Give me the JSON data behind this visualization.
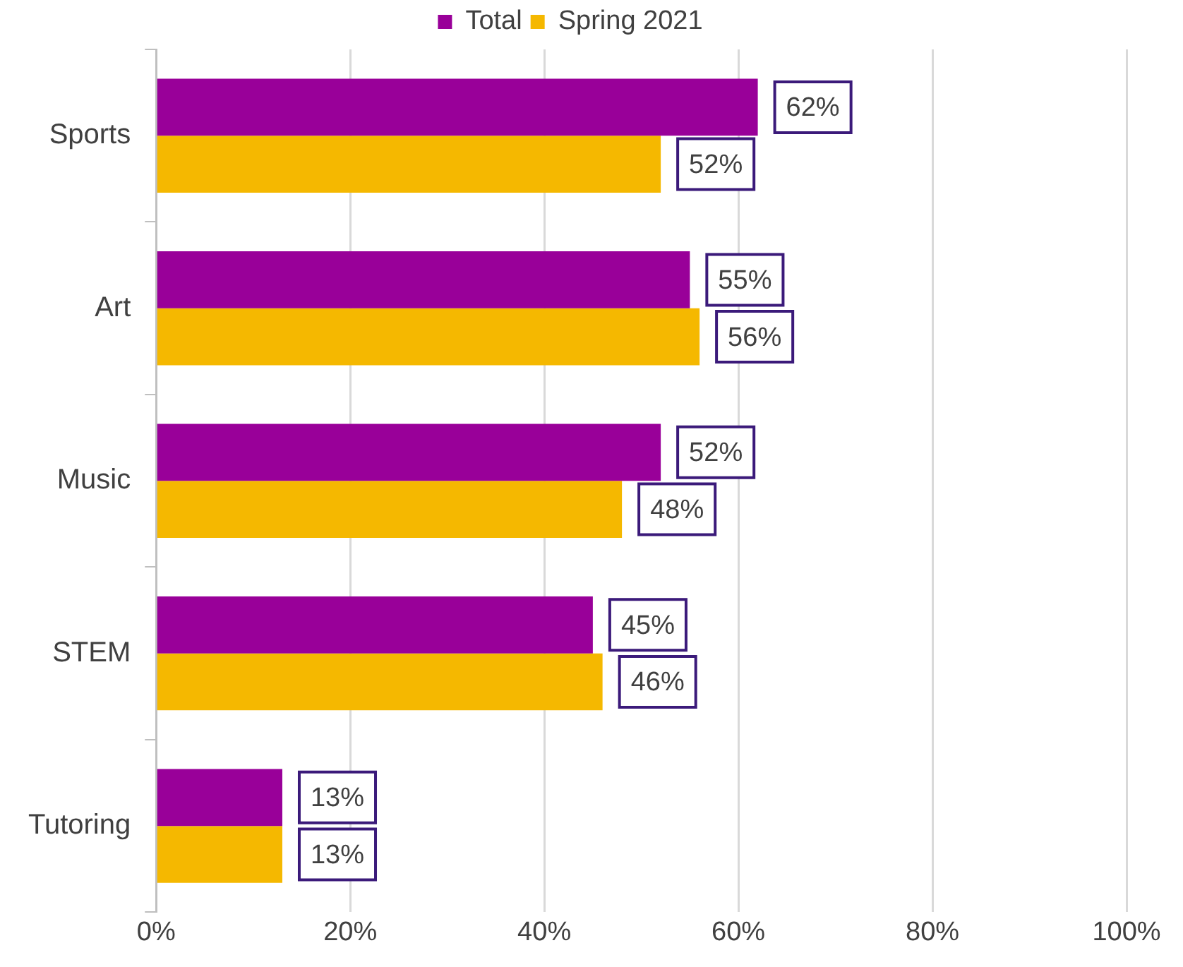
{
  "chart_data": {
    "type": "bar",
    "orientation": "horizontal",
    "categories": [
      "Sports",
      "Art",
      "Music",
      "STEM",
      "Tutoring"
    ],
    "series": [
      {
        "name": "Total",
        "color": "#990099",
        "values": [
          62,
          55,
          52,
          45,
          13
        ],
        "value_labels": [
          "62%",
          "55%",
          "52%",
          "45%",
          "13%"
        ]
      },
      {
        "name": "Spring 2021",
        "color": "#f5b800",
        "values": [
          52,
          56,
          48,
          46,
          13
        ],
        "value_labels": [
          "52%",
          "56%",
          "48%",
          "46%",
          "13%"
        ]
      }
    ],
    "xlim": [
      0,
      100
    ],
    "xticks": [
      {
        "value": 0,
        "label": "0%"
      },
      {
        "value": 20,
        "label": "20%"
      },
      {
        "value": 40,
        "label": "40%"
      },
      {
        "value": 60,
        "label": "60%"
      },
      {
        "value": 80,
        "label": "80%"
      },
      {
        "value": 100,
        "label": "100%"
      }
    ],
    "grid": "x",
    "legend": "top"
  }
}
